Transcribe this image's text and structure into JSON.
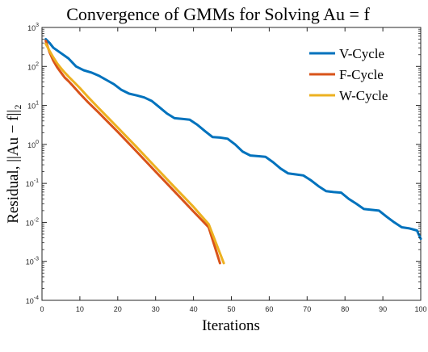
{
  "chart_data": {
    "type": "line",
    "title": "Convergence of GMMs for Solving Au = f",
    "xlabel": "Iterations",
    "ylabel": "Residual, ||Au − f||₂",
    "xlim": [
      0,
      100
    ],
    "ylim": [
      0.0001,
      1000
    ],
    "yscale": "log",
    "x_ticks": [
      0,
      10,
      20,
      30,
      40,
      50,
      60,
      70,
      80,
      90,
      100
    ],
    "y_ticks": [
      {
        "value": 0.0001,
        "base": "10",
        "exp": "-4"
      },
      {
        "value": 0.001,
        "base": "10",
        "exp": "-3"
      },
      {
        "value": 0.01,
        "base": "10",
        "exp": "-2"
      },
      {
        "value": 0.1,
        "base": "10",
        "exp": "-1"
      },
      {
        "value": 1,
        "base": "10",
        "exp": "0"
      },
      {
        "value": 10,
        "base": "10",
        "exp": "1"
      },
      {
        "value": 100,
        "base": "10",
        "exp": "2"
      },
      {
        "value": 1000,
        "base": "10",
        "exp": "3"
      }
    ],
    "grid": false,
    "legend_position": "top-right",
    "series": [
      {
        "name": "V-Cycle",
        "color": "#0072BD",
        "x": [
          1,
          2,
          3,
          5,
          7,
          9,
          11,
          13,
          15,
          17,
          19,
          21,
          23,
          25,
          27,
          29,
          31,
          33,
          35,
          37,
          39,
          41,
          43,
          45,
          47,
          49,
          51,
          53,
          55,
          57,
          59,
          61,
          63,
          65,
          67,
          69,
          71,
          73,
          75,
          77,
          79,
          81,
          83,
          85,
          87,
          89,
          91,
          93,
          95,
          97,
          99,
          100
        ],
        "y": [
          500,
          400,
          300,
          220,
          160,
          100,
          80,
          70,
          58,
          45,
          35,
          25,
          20,
          18,
          16,
          13,
          9,
          6.2,
          4.7,
          4.5,
          4.3,
          3.2,
          2.2,
          1.55,
          1.5,
          1.4,
          1.0,
          0.65,
          0.52,
          0.5,
          0.48,
          0.35,
          0.24,
          0.18,
          0.17,
          0.16,
          0.12,
          0.085,
          0.063,
          0.06,
          0.058,
          0.04,
          0.03,
          0.022,
          0.021,
          0.02,
          0.014,
          0.01,
          0.0075,
          0.007,
          0.0062,
          0.0038
        ]
      },
      {
        "name": "F-Cycle",
        "color": "#D95319",
        "x": [
          1,
          2,
          3,
          4,
          5,
          6,
          7,
          8,
          10,
          12,
          15,
          20,
          25,
          30,
          35,
          40,
          44,
          47
        ],
        "y": [
          450,
          230,
          140,
          95,
          70,
          52,
          42,
          33,
          20,
          12.5,
          6.5,
          2.1,
          0.65,
          0.2,
          0.062,
          0.019,
          0.0075,
          0.0009
        ]
      },
      {
        "name": "W-Cycle",
        "color": "#EDB120",
        "x": [
          1,
          2,
          3,
          4,
          5,
          6,
          7,
          8,
          10,
          12,
          15,
          20,
          25,
          30,
          35,
          40,
          44,
          48
        ],
        "y": [
          380,
          250,
          170,
          120,
          90,
          70,
          55,
          44,
          28,
          17,
          8.5,
          2.7,
          0.85,
          0.26,
          0.08,
          0.025,
          0.009,
          0.0009
        ]
      }
    ]
  }
}
